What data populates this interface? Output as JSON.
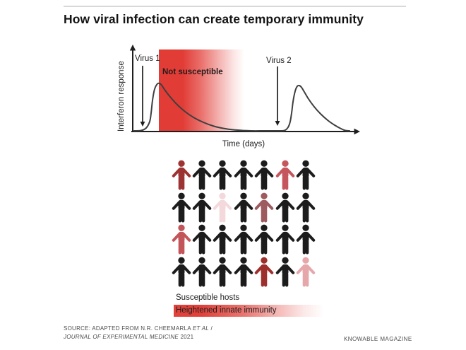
{
  "title": "How viral infection can create temporary immunity",
  "chart": {
    "y_axis_label": "Interferon response",
    "x_axis_label": "Time (days)",
    "virus1_label": "Virus 1",
    "virus2_label": "Virus 2",
    "band_label": "Not susceptible",
    "band_color": "#e23c36",
    "curve_color": "#3f3f3f",
    "axis_color": "#1e1e1e"
  },
  "chart_data": {
    "type": "line",
    "title": "",
    "xlabel": "Time (days)",
    "ylabel": "Interferon response",
    "axes_numeric": false,
    "annotations": [
      {
        "label": "Virus 1",
        "kind": "event-arrow"
      },
      {
        "label": "Virus 2",
        "kind": "event-arrow"
      },
      {
        "label": "Not susceptible",
        "kind": "shaded-band"
      }
    ],
    "series": [
      {
        "name": "Interferon response",
        "points": [
          [
            30,
            125
          ],
          [
            40,
            124.5
          ],
          [
            47,
            121
          ],
          [
            52,
            112
          ],
          [
            54,
            100
          ],
          [
            56,
            82
          ],
          [
            59,
            66
          ],
          [
            63,
            58.5
          ],
          [
            66,
            58
          ],
          [
            69,
            60.5
          ],
          [
            74,
            68
          ],
          [
            81,
            77
          ],
          [
            90,
            87
          ],
          [
            101,
            97
          ],
          [
            114,
            106
          ],
          [
            128,
            113
          ],
          [
            143,
            118.5
          ],
          [
            159,
            122
          ],
          [
            176,
            124
          ],
          [
            195,
            125
          ],
          [
            215,
            125
          ],
          [
            235,
            125
          ],
          [
            243,
            124.5
          ],
          [
            248,
            120
          ],
          [
            251,
            112
          ],
          [
            253,
            100
          ],
          [
            255,
            84
          ],
          [
            258,
            69
          ],
          [
            261,
            62
          ],
          [
            264,
            61
          ],
          [
            267,
            63.5
          ],
          [
            271,
            70
          ],
          [
            277,
            80
          ],
          [
            285,
            91
          ],
          [
            294,
            101
          ],
          [
            304,
            110
          ],
          [
            314,
            117
          ],
          [
            323,
            122
          ],
          [
            329,
            124.5
          ],
          [
            335,
            125
          ]
        ]
      }
    ],
    "not_susceptible_band": {
      "x": 65,
      "y": 10,
      "width": 121,
      "height": 116
    },
    "virus_arrows": [
      {
        "label": "Virus 1",
        "x": 42,
        "y1": 33,
        "y2": 119
      },
      {
        "label": "Virus 2",
        "x": 233,
        "y1": 34,
        "y2": 118
      }
    ]
  },
  "population": {
    "rows": [
      [
        "#9c3433",
        "#1c1c1c",
        "#1c1c1c",
        "#1c1c1c",
        "#1c1c1c",
        "#c5565d",
        "#1c1c1c"
      ],
      [
        "#1c1c1c",
        "#1c1c1c",
        "#f3d8dc",
        "#1c1c1c",
        "#9e5a5e",
        "#1c1c1c",
        "#1c1c1c"
      ],
      [
        "#c35459",
        "#1c1c1c",
        "#1c1c1c",
        "#1c1c1c",
        "#1c1c1c",
        "#1c1c1c",
        "#1c1c1c"
      ],
      [
        "#1c1c1c",
        "#1c1c1c",
        "#1c1c1c",
        "#1c1c1c",
        "#9d302c",
        "#1c1c1c",
        "#e6a7ab"
      ]
    ],
    "susceptible_color": "#1c1c1c",
    "legend": {
      "susceptible_label": "Susceptible hosts",
      "immunity_label": "Heightened innate immunity",
      "immunity_gradient_color": "#e0423b"
    }
  },
  "footer": {
    "source_prefix": "SOURCE: ADAPTED FROM N.R. CHEEMARLA ",
    "source_italic1": "ET AL",
    "source_mid": " /",
    "source_italic2": "JOURNAL OF EXPERIMENTAL MEDICINE",
    "source_suffix": " 2021",
    "credit": "KNOWABLE MAGAZINE"
  }
}
